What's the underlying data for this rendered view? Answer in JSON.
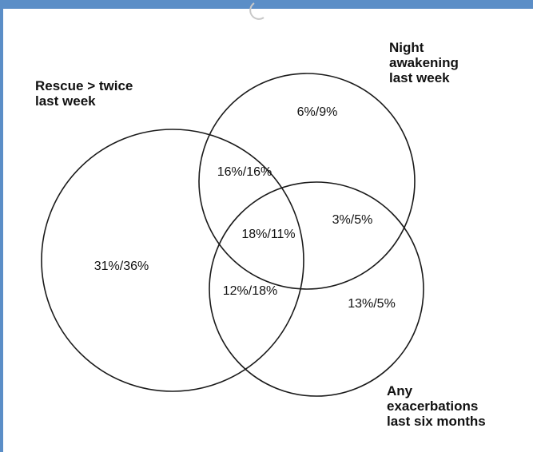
{
  "diagram": {
    "type": "venn",
    "sets": {
      "rescue": "Rescue > twice\nlast week",
      "night": "Night\nawakening\nlast week",
      "exacerbations": "Any\nexacerbations\nlast six months"
    },
    "regions": {
      "rescue_only": "31%/36%",
      "night_only": "6%/9%",
      "exacerbations_only": "13%/5%",
      "rescue_night": "16%/16%",
      "night_exacerbations": "3%/5%",
      "rescue_exacerbations": "12%/18%",
      "all_three": "18%/11%"
    }
  },
  "colors": {
    "frame_bar": "#5b8ec7",
    "watermark": "#c8c8c8",
    "stroke": "#1a1a1a"
  }
}
